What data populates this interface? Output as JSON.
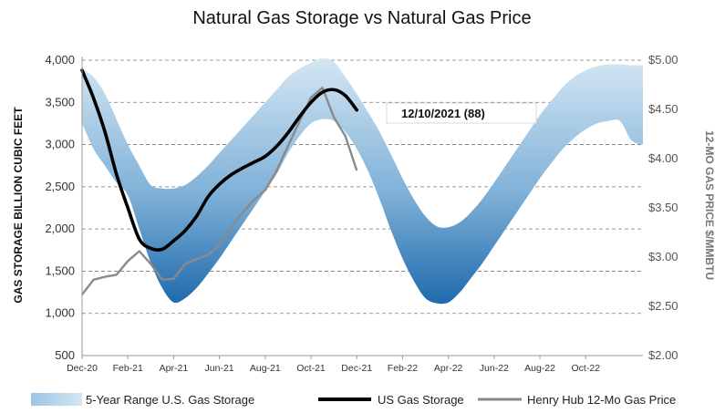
{
  "chart_data": {
    "type": "area",
    "title": "Natural Gas Storage vs Natural Gas Price",
    "ylabel": "GAS STORAGE BILLION CUBIC FEET",
    "y2label": "12-MO GAS PRICE $/MMBTU",
    "ylim": [
      500,
      4000
    ],
    "y2lim": [
      2.0,
      5.0
    ],
    "yticks": [
      "500",
      "1,000",
      "1,500",
      "2,000",
      "2,500",
      "3,000",
      "3,500",
      "4,000"
    ],
    "y2ticks": [
      "$2.00",
      "$2.50",
      "$3.00",
      "$3.50",
      "$4.00",
      "$4.50",
      "$5.00"
    ],
    "x_tick_labels": [
      "Dec-20",
      "Feb-21",
      "Apr-21",
      "Jun-21",
      "Aug-21",
      "Oct-21",
      "Dec-21",
      "Feb-22",
      "Apr-22",
      "Jun-22",
      "Aug-22",
      "Oct-22"
    ],
    "x_tick_months": [
      0,
      2,
      4,
      6,
      8,
      10,
      12,
      14,
      16,
      18,
      20,
      22
    ],
    "x_max_month": 24.5,
    "grid": true,
    "legend_position": "bottom",
    "annotation": "12/10/2021  (88)",
    "colors": {
      "range_top": "#c9dff0",
      "range_bottom": "#1f6fb2",
      "storage": "#000000",
      "price": "#888888"
    },
    "series": [
      {
        "name": "5-Year Range U.S. Gas Storage",
        "kind": "range",
        "months": [
          0,
          0.5,
          1,
          1.5,
          2,
          2.5,
          3,
          3.5,
          4,
          4.5,
          5,
          5.5,
          6,
          6.5,
          7,
          7.5,
          8,
          8.5,
          9,
          9.5,
          10,
          10.5,
          11,
          11.5,
          12,
          12.5,
          13,
          13.5,
          14,
          14.5,
          15,
          15.5,
          16,
          16.5,
          17,
          17.5,
          18,
          18.5,
          19,
          19.5,
          20,
          20.5,
          21,
          21.5,
          22,
          22.5,
          23,
          23.5,
          24,
          24.5
        ],
        "high": [
          3900,
          3800,
          3600,
          3300,
          3000,
          2750,
          2520,
          2480,
          2480,
          2520,
          2620,
          2750,
          2900,
          3050,
          3200,
          3350,
          3500,
          3650,
          3800,
          3900,
          3970,
          4020,
          3980,
          3800,
          3600,
          3380,
          3150,
          2880,
          2600,
          2350,
          2150,
          2030,
          2020,
          2080,
          2200,
          2360,
          2550,
          2750,
          2950,
          3150,
          3350,
          3520,
          3680,
          3800,
          3880,
          3930,
          3950,
          3950,
          3940,
          3940
        ],
        "low": [
          3250,
          2950,
          2750,
          2550,
          2400,
          2000,
          1600,
          1300,
          1130,
          1180,
          1300,
          1470,
          1650,
          1850,
          2050,
          2250,
          2450,
          2650,
          2900,
          3100,
          3250,
          3300,
          3280,
          3150,
          2950,
          2680,
          2350,
          1980,
          1650,
          1380,
          1180,
          1120,
          1130,
          1250,
          1420,
          1600,
          1800,
          2000,
          2200,
          2400,
          2600,
          2780,
          2950,
          3080,
          3180,
          3250,
          3280,
          3280,
          3050,
          3000
        ]
      },
      {
        "name": "US Gas Storage",
        "kind": "line",
        "months": [
          0,
          0.5,
          1,
          1.5,
          2,
          2.5,
          3,
          3.5,
          4,
          4.5,
          5,
          5.5,
          6,
          6.5,
          7,
          7.5,
          8,
          8.5,
          9,
          9.5,
          10,
          10.5,
          11,
          11.5,
          12
        ],
        "values": [
          3880,
          3550,
          3150,
          2650,
          2250,
          1880,
          1770,
          1760,
          1860,
          1980,
          2150,
          2380,
          2530,
          2640,
          2720,
          2790,
          2860,
          2980,
          3140,
          3330,
          3500,
          3620,
          3650,
          3580,
          3410
        ]
      },
      {
        "name": "Henry Hub 12-Mo Gas Price",
        "kind": "line",
        "axis": "right",
        "months": [
          0,
          0.5,
          1,
          1.5,
          2,
          2.5,
          3,
          3.5,
          4,
          4.5,
          5,
          5.5,
          6,
          6.5,
          7,
          7.5,
          8,
          8.5,
          9,
          9.5,
          10,
          10.5,
          11,
          11.5,
          12
        ],
        "values": [
          2.62,
          2.77,
          2.8,
          2.82,
          2.96,
          3.06,
          2.93,
          2.77,
          2.78,
          2.93,
          2.98,
          3.02,
          3.12,
          3.3,
          3.45,
          3.58,
          3.68,
          3.88,
          4.13,
          4.38,
          4.62,
          4.72,
          4.42,
          4.23,
          3.88
        ]
      }
    ]
  }
}
